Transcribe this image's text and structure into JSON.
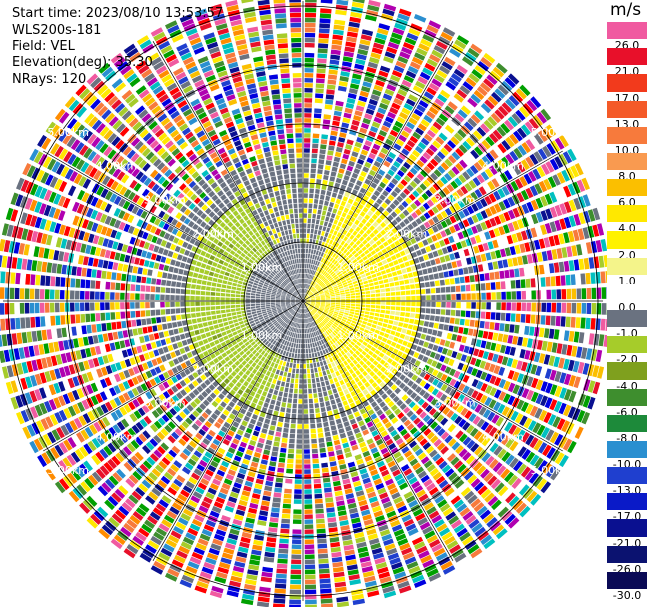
{
  "header": {
    "start_time": "Start time: 2023/08/10 13:53:57",
    "instrument": "WLS200s-181",
    "field": "Field: VEL",
    "elevation": "Elevation(deg): 35.30",
    "nrays": "NRays: 120"
  },
  "colorbar": {
    "unit": "m/s",
    "levels": [
      {
        "label": "26.0",
        "color": "#f05aa0"
      },
      {
        "label": "21.0",
        "color": "#e8102a"
      },
      {
        "label": "17.0",
        "color": "#f23a1c"
      },
      {
        "label": "13.0",
        "color": "#f45a28"
      },
      {
        "label": "10.0",
        "color": "#f77a3c"
      },
      {
        "label": "8.0",
        "color": "#f99a50"
      },
      {
        "label": "6.0",
        "color": "#fbbf00"
      },
      {
        "label": "4.0",
        "color": "#ffe800"
      },
      {
        "label": "2.0",
        "color": "#fff200"
      },
      {
        "label": "1.0",
        "color": "#f4f48a"
      },
      {
        "label": "0.0",
        "color": "#ffffff"
      },
      {
        "label": "-1.0",
        "color": "#6a7280"
      },
      {
        "label": "-2.0",
        "color": "#a6cc2a"
      },
      {
        "label": "-4.0",
        "color": "#7fa01e"
      },
      {
        "label": "-6.0",
        "color": "#3e8e2e"
      },
      {
        "label": "-8.0",
        "color": "#1d8a3a"
      },
      {
        "label": "-10.0",
        "color": "#2a8fd0"
      },
      {
        "label": "-13.0",
        "color": "#1f3fcf"
      },
      {
        "label": "-17.0",
        "color": "#0a1ac8"
      },
      {
        "label": "-21.0",
        "color": "#0a1090"
      },
      {
        "label": "-26.0",
        "color": "#0b1270"
      },
      {
        "label": "-30.0",
        "color": "#0a0a55"
      }
    ]
  },
  "chart_data": {
    "type": "heatmap",
    "projection": "PPI polar",
    "field": "VEL",
    "units": "m/s",
    "n_rays": 120,
    "range_rings_km": [
      1.0,
      2.0,
      3.0,
      4.0,
      5.0
    ],
    "range_ring_labels": [
      "1.00km",
      "2.00km",
      "3.00km",
      "4.00km",
      "5.00km"
    ],
    "regions": [
      {
        "description": "yellow",
        "range_km": [
          0,
          2.0
        ],
        "azimuth_deg": [
          20,
          160
        ],
        "value_ms": 2.0
      },
      {
        "description": "green",
        "range_km": [
          0.3,
          2.0
        ],
        "azimuth_deg": [
          200,
          330
        ],
        "value_ms": -2.0
      },
      {
        "description": "grey",
        "range_km": [
          0,
          1.0
        ],
        "azimuth_deg": [
          0,
          360
        ],
        "value_ms": -1.0
      },
      {
        "description": "mixed noise",
        "range_km": [
          2.5,
          5.8
        ],
        "azimuth_deg": [
          0,
          360
        ],
        "value_ms": null
      }
    ]
  }
}
